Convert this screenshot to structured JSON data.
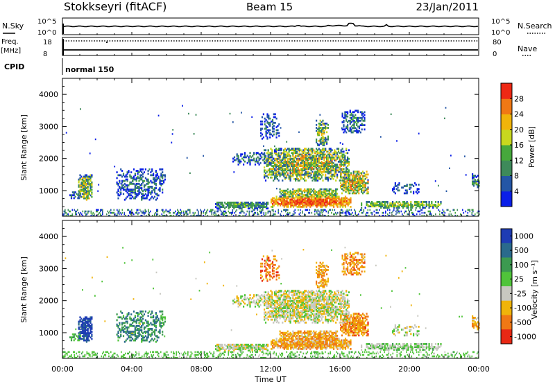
{
  "header": {
    "station": "Stokkseyri (fitACF)",
    "beam": "Beam 15",
    "date": "23/Jan/2011"
  },
  "top_panels": {
    "nsky_label": "N.Sky",
    "nsearch_label": "N.Search",
    "freq_label": "Freq.",
    "freq_unit": "[MHz]",
    "nave_label": "Nave",
    "cpid_label": "CPID",
    "cpid_value": "normal 150",
    "log_ticks": [
      "10^5",
      "10^0"
    ],
    "freq_ticks": [
      "18",
      "8"
    ],
    "nave_ticks": [
      "80",
      "0"
    ]
  },
  "chart_data": [
    {
      "type": "heatmap",
      "name": "power",
      "ylabel": "Slant Range [km]",
      "xlabel": "",
      "ylim": [
        200,
        4500
      ],
      "xlim": [
        0,
        24
      ],
      "yticks": [
        "1000",
        "2000",
        "3000",
        "4000"
      ],
      "colorbar_label": "Power [dB]",
      "colorbar_ticks": [
        "4",
        "8",
        "12",
        "16",
        "20",
        "24",
        "28"
      ],
      "colorbar_colors": [
        "#0a1fe8",
        "#2456a6",
        "#3e8a5a",
        "#46a83c",
        "#c8d81e",
        "#f0b40a",
        "#f07814",
        "#ee2814"
      ]
    },
    {
      "type": "heatmap",
      "name": "velocity",
      "ylabel": "Slant Range [km]",
      "xlabel": "Time UT",
      "ylim": [
        200,
        4500
      ],
      "xlim": [
        0,
        24
      ],
      "yticks": [
        "1000",
        "2000",
        "3000",
        "4000"
      ],
      "xticks": [
        "00:00",
        "04:00",
        "08:00",
        "12:00",
        "16:00",
        "20:00",
        "00:00"
      ],
      "colorbar_label": "Velocity [m s⁻¹]",
      "colorbar_ticks": [
        "1000",
        "500",
        "100",
        "25",
        "-25",
        "-100",
        "-500",
        "-1000"
      ],
      "colorbar_colors": [
        "#1e3cb4",
        "#2a6a8c",
        "#3c9a50",
        "#50c43a",
        "#c8c8c0",
        "#f0b40a",
        "#f07814",
        "#e82814"
      ]
    }
  ]
}
